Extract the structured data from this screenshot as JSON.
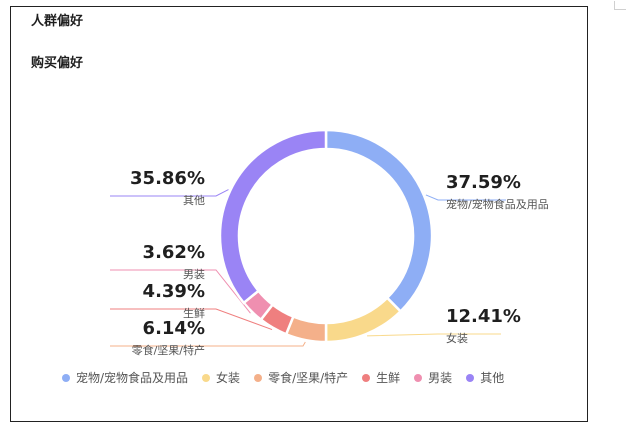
{
  "header": {
    "title": "人群偏好",
    "subtitle": "购买偏好"
  },
  "chart_data": {
    "type": "pie",
    "donut": true,
    "legend_position": "bottom",
    "slices": [
      {
        "label": "宠物/宠物食品及用品",
        "value": 37.59,
        "display": "37.59%",
        "color": "#8eaef5"
      },
      {
        "label": "女装",
        "value": 12.41,
        "display": "12.41%",
        "color": "#f9d98b"
      },
      {
        "label": "零食/坚果/特产",
        "value": 6.14,
        "display": "6.14%",
        "color": "#f4b08a"
      },
      {
        "label": "生鲜",
        "value": 4.39,
        "display": "4.39%",
        "color": "#ef7f7f"
      },
      {
        "label": "男装",
        "value": 3.62,
        "display": "3.62%",
        "color": "#ef8fb0"
      },
      {
        "label": "其他",
        "value": 35.86,
        "display": "35.86%",
        "color": "#9a84f5"
      }
    ]
  }
}
